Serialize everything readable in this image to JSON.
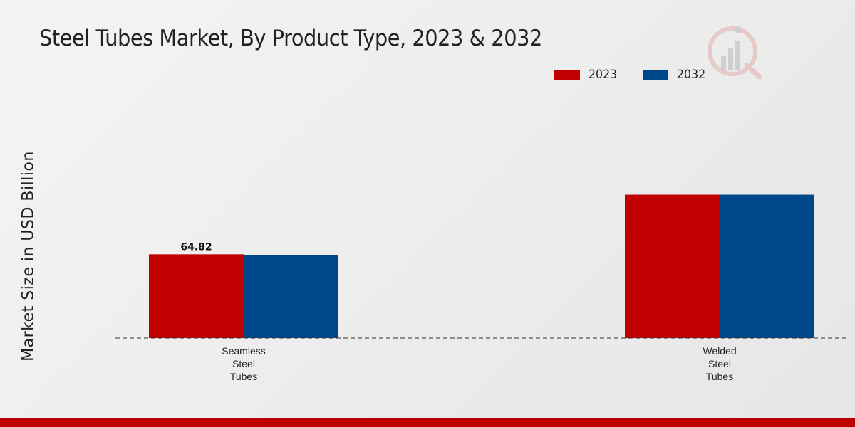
{
  "chart_data": {
    "type": "bar",
    "title": "Steel Tubes Market, By Product Type, 2023 & 2032",
    "ylabel": "Market Size in USD Billion",
    "xlabel": "",
    "categories": [
      "Seamless Steel Tubes",
      "Welded Steel Tubes"
    ],
    "category_lines": [
      [
        "Seamless",
        "Steel",
        "Tubes"
      ],
      [
        "Welded",
        "Steel",
        "Tubes"
      ]
    ],
    "series": [
      {
        "name": "2023",
        "color": "#c00000",
        "values": [
          64.82,
          111.0
        ]
      },
      {
        "name": "2032",
        "color": "#00478a",
        "values": [
          64.3,
          111.0
        ]
      }
    ],
    "data_labels": [
      {
        "series": 0,
        "category": 0,
        "text": "64.82"
      }
    ],
    "ylim": [
      0,
      200
    ],
    "grid": false,
    "legend_position": "top-right"
  }
}
